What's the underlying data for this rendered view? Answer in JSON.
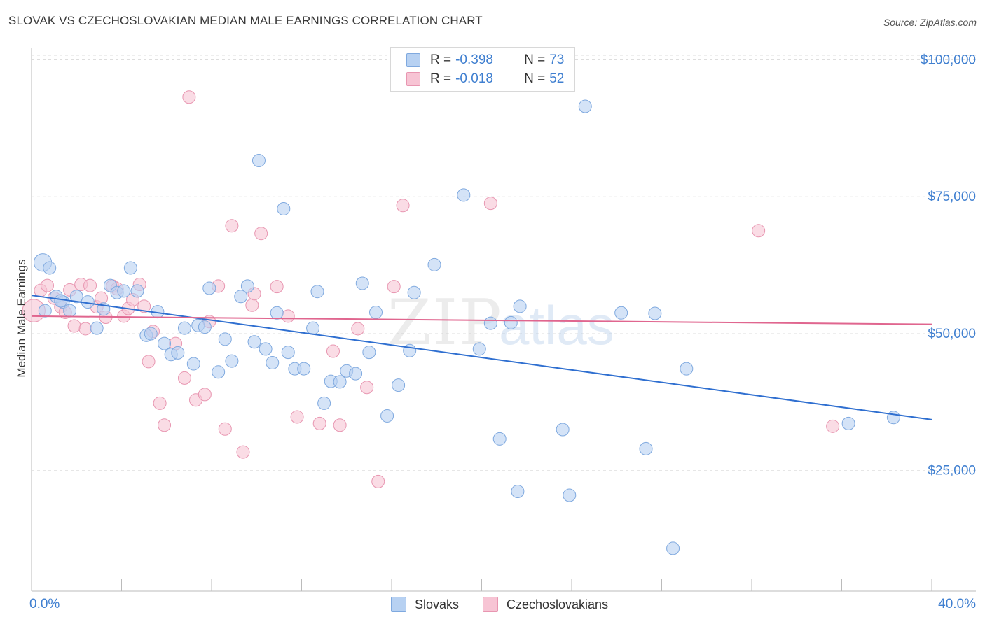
{
  "title": "SLOVAK VS CZECHOSLOVAKIAN MEDIAN MALE EARNINGS CORRELATION CHART",
  "source": "Source: ZipAtlas.com",
  "watermark": {
    "zip": "ZIP",
    "atlas": "atlas"
  },
  "colors": {
    "blue_fill": "#b7d1f2",
    "blue_stroke": "#7fa9df",
    "blue_line": "#2f6fd0",
    "pink_fill": "#f7c4d4",
    "pink_stroke": "#e896b1",
    "pink_line": "#e0668f",
    "axis_text": "#3f7fd0",
    "grid": "#dddddd"
  },
  "legend": {
    "rows": [
      {
        "r_label": "R = ",
        "r_value": "-0.398",
        "n_label": "N = ",
        "n_value": "73",
        "color": "blue"
      },
      {
        "r_label": "R = ",
        "r_value": "-0.018",
        "n_label": "N = ",
        "n_value": "52",
        "color": "pink"
      }
    ]
  },
  "bottom_legend": [
    "Slovaks",
    "Czechoslovakians"
  ],
  "chart_data": {
    "type": "scatter",
    "title": "SLOVAK VS CZECHOSLOVAKIAN MEDIAN MALE EARNINGS CORRELATION CHART",
    "xlabel": "",
    "ylabel": "Median Male Earnings",
    "xlim": [
      0,
      40
    ],
    "ylim": [
      3000,
      103000
    ],
    "x_tick_labels": [
      "0.0%",
      "40.0%"
    ],
    "y_ticks": [
      25000,
      50000,
      75000,
      100000
    ],
    "y_tick_labels": [
      "$25,000",
      "$50,000",
      "$75,000",
      "$100,000"
    ],
    "grid": "horizontal dashed",
    "series": [
      {
        "name": "Slovaks",
        "color": "blue",
        "trend": {
          "x": [
            0,
            40
          ],
          "y": [
            57000,
            34300
          ]
        },
        "points": [
          [
            0.5,
            63000,
            1.4
          ],
          [
            0.8,
            62000,
            1
          ],
          [
            1.1,
            56800,
            1
          ],
          [
            1.4,
            55800,
            1
          ],
          [
            1.7,
            54200,
            1
          ],
          [
            2.0,
            56800,
            1
          ],
          [
            2.5,
            55800,
            1
          ],
          [
            2.9,
            51000,
            1
          ],
          [
            3.2,
            54500,
            1
          ],
          [
            3.5,
            58800,
            1
          ],
          [
            3.8,
            57500,
            1
          ],
          [
            4.1,
            57800,
            1
          ],
          [
            4.4,
            62000,
            1
          ],
          [
            4.7,
            57800,
            1
          ],
          [
            5.1,
            49700,
            1
          ],
          [
            5.3,
            50000,
            1
          ],
          [
            5.6,
            54000,
            1
          ],
          [
            5.9,
            48200,
            1
          ],
          [
            6.2,
            46200,
            1
          ],
          [
            6.5,
            46500,
            1
          ],
          [
            6.8,
            51000,
            1
          ],
          [
            7.2,
            44500,
            1
          ],
          [
            7.4,
            51500,
            1
          ],
          [
            7.7,
            51200,
            1
          ],
          [
            7.9,
            58300,
            1
          ],
          [
            8.3,
            43000,
            1
          ],
          [
            8.6,
            49000,
            1
          ],
          [
            8.9,
            45000,
            1
          ],
          [
            9.3,
            56800,
            1
          ],
          [
            9.6,
            58700,
            1
          ],
          [
            9.9,
            48500,
            1
          ],
          [
            10.1,
            81600,
            1
          ],
          [
            10.4,
            47200,
            1
          ],
          [
            10.7,
            44700,
            1
          ],
          [
            10.9,
            53800,
            1
          ],
          [
            11.2,
            72800,
            1
          ],
          [
            11.4,
            46600,
            1
          ],
          [
            11.7,
            43600,
            1
          ],
          [
            12.1,
            43600,
            1
          ],
          [
            12.5,
            51000,
            1
          ],
          [
            12.7,
            57700,
            1
          ],
          [
            13.0,
            37300,
            1
          ],
          [
            13.3,
            41300,
            1
          ],
          [
            13.7,
            41200,
            1
          ],
          [
            14.0,
            43200,
            1
          ],
          [
            14.4,
            42700,
            1
          ],
          [
            14.7,
            59200,
            1
          ],
          [
            15.0,
            46600,
            1
          ],
          [
            15.3,
            53900,
            1
          ],
          [
            15.8,
            35000,
            1
          ],
          [
            16.3,
            40600,
            1
          ],
          [
            16.8,
            46900,
            1
          ],
          [
            17.0,
            57500,
            1
          ],
          [
            17.9,
            62600,
            1
          ],
          [
            19.2,
            75300,
            1
          ],
          [
            19.9,
            47200,
            1
          ],
          [
            20.4,
            51900,
            1
          ],
          [
            20.8,
            30800,
            1
          ],
          [
            21.3,
            52000,
            1
          ],
          [
            21.6,
            21200,
            1
          ],
          [
            21.7,
            55000,
            1
          ],
          [
            23.6,
            32500,
            1
          ],
          [
            23.9,
            20500,
            1
          ],
          [
            24.6,
            91500,
            1
          ],
          [
            26.2,
            53800,
            1
          ],
          [
            27.3,
            29000,
            1
          ],
          [
            27.7,
            53700,
            1
          ],
          [
            28.5,
            10800,
            1
          ],
          [
            29.1,
            43600,
            1
          ],
          [
            36.3,
            33600,
            1
          ],
          [
            38.3,
            34700,
            1
          ],
          [
            0.6,
            54200,
            1
          ],
          [
            1.3,
            56000,
            1
          ]
        ]
      },
      {
        "name": "Czechoslovakians",
        "color": "pink",
        "trend": {
          "x": [
            0,
            40
          ],
          "y": [
            53200,
            51700
          ]
        },
        "points": [
          [
            0.1,
            54200,
            1.8
          ],
          [
            0.4,
            57900,
            1
          ],
          [
            0.7,
            58800,
            1
          ],
          [
            1.0,
            56500,
            1
          ],
          [
            1.3,
            54900,
            1
          ],
          [
            1.5,
            53900,
            1
          ],
          [
            1.7,
            58000,
            1
          ],
          [
            1.9,
            51400,
            1
          ],
          [
            2.2,
            59000,
            1
          ],
          [
            2.4,
            50900,
            1
          ],
          [
            2.6,
            58800,
            1
          ],
          [
            2.9,
            54900,
            1
          ],
          [
            3.1,
            56500,
            1
          ],
          [
            3.3,
            53000,
            1
          ],
          [
            3.6,
            58700,
            1
          ],
          [
            3.8,
            58200,
            1
          ],
          [
            4.1,
            53200,
            1
          ],
          [
            4.3,
            54600,
            1
          ],
          [
            4.5,
            56200,
            1
          ],
          [
            4.8,
            59000,
            1
          ],
          [
            5.0,
            55000,
            1
          ],
          [
            5.2,
            44900,
            1
          ],
          [
            5.4,
            50400,
            1
          ],
          [
            5.7,
            37300,
            1
          ],
          [
            5.9,
            33300,
            1
          ],
          [
            6.4,
            48200,
            1
          ],
          [
            6.8,
            41900,
            1
          ],
          [
            7.0,
            93200,
            1
          ],
          [
            7.3,
            37900,
            1
          ],
          [
            7.7,
            38900,
            1
          ],
          [
            7.9,
            52200,
            1
          ],
          [
            8.3,
            58700,
            1
          ],
          [
            8.6,
            32600,
            1
          ],
          [
            8.9,
            69700,
            1
          ],
          [
            9.4,
            28400,
            1
          ],
          [
            9.8,
            55200,
            1
          ],
          [
            9.9,
            57300,
            1
          ],
          [
            10.2,
            68300,
            1
          ],
          [
            10.9,
            58600,
            1
          ],
          [
            11.4,
            53200,
            1
          ],
          [
            11.8,
            34800,
            1
          ],
          [
            12.8,
            33600,
            1
          ],
          [
            13.4,
            46800,
            1
          ],
          [
            13.7,
            33300,
            1
          ],
          [
            14.5,
            50900,
            1
          ],
          [
            14.9,
            40200,
            1
          ],
          [
            15.4,
            23000,
            1
          ],
          [
            16.1,
            58600,
            1
          ],
          [
            16.5,
            73400,
            1
          ],
          [
            20.4,
            73800,
            1
          ],
          [
            32.3,
            68800,
            1
          ],
          [
            35.6,
            33100,
            1
          ]
        ]
      }
    ]
  }
}
